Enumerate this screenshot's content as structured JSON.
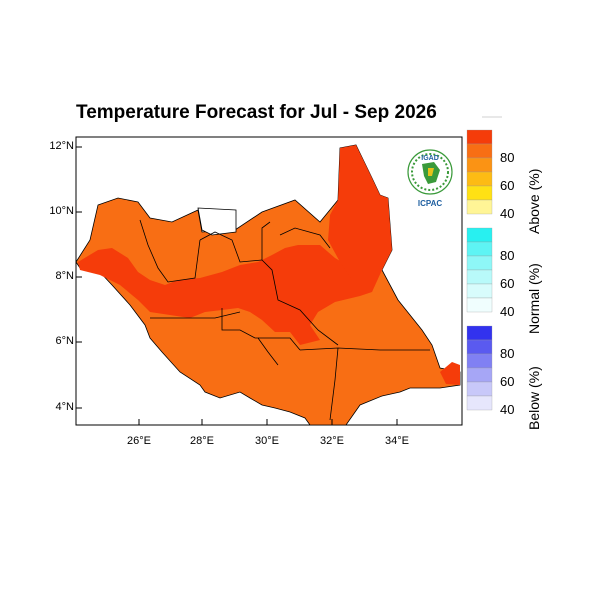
{
  "title": "Temperature Forecast for Jul - Sep 2026",
  "logo": {
    "text_top": "IGAD",
    "text_bottom": "ICPAC"
  },
  "axes": {
    "y_ticks": [
      "12°N",
      "10°N",
      "8°N",
      "6°N",
      "4°N"
    ],
    "x_ticks": [
      "26°E",
      "28°E",
      "30°E",
      "32°E",
      "34°E"
    ]
  },
  "colorbar": {
    "groups": [
      {
        "name": "Above (%)",
        "labels": [
          "80",
          "60",
          "40"
        ],
        "colors": [
          "#f53c0a",
          "#f86e14",
          "#fb9314",
          "#fdbb14",
          "#ffe114",
          "#fff596"
        ]
      },
      {
        "name": "Normal (%)",
        "labels": [
          "80",
          "60",
          "40"
        ],
        "colors": [
          "#28f0f0",
          "#5ef4f4",
          "#8ef7f7",
          "#b8fafa",
          "#d8fcfc",
          "#f0fefe"
        ]
      },
      {
        "name": "Below (%)",
        "labels": [
          "80",
          "60",
          "40"
        ],
        "colors": [
          "#3232ee",
          "#5a5af0",
          "#8080f3",
          "#a6a6f6",
          "#c8c8f9",
          "#e6e6fc"
        ]
      }
    ]
  },
  "colors": {
    "above_high": "#f53c0a",
    "above_mid": "#f86e14",
    "no_data": "#ffffff"
  }
}
